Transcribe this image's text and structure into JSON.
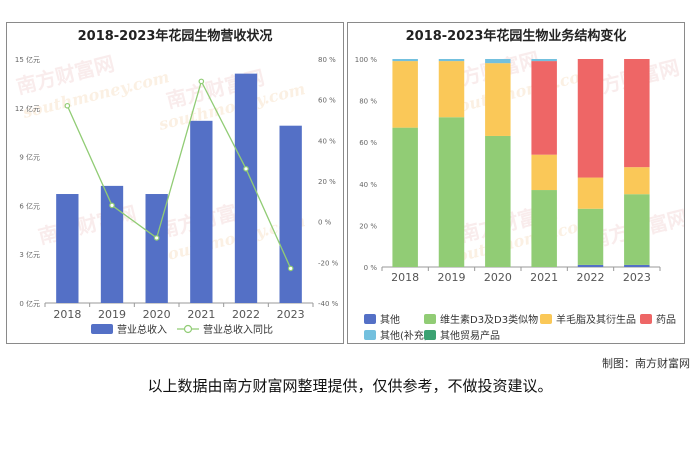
{
  "chart_data": [
    {
      "type": "bar",
      "title": "2018-2023年花园生物营收状况",
      "categories": [
        "2018",
        "2019",
        "2020",
        "2021",
        "2022",
        "2023"
      ],
      "series": [
        {
          "name": "营业总收入",
          "kind": "bar",
          "axis": "left",
          "color": "#5470c6",
          "values": [
            6.7,
            7.2,
            6.7,
            11.2,
            14.1,
            10.9
          ]
        },
        {
          "name": "营业总收入同比",
          "kind": "line",
          "axis": "right",
          "color": "#91cc75",
          "values": [
            57,
            8,
            -8,
            69,
            26,
            -23
          ]
        }
      ],
      "y_left": {
        "ticks": [
          "0 亿元",
          "3 亿元",
          "6 亿元",
          "9 亿元",
          "12 亿元",
          "15 亿元"
        ],
        "ylim": [
          0,
          15
        ]
      },
      "y_right": {
        "ticks": [
          "-40 %",
          "-20 %",
          "0 %",
          "20 %",
          "40 %",
          "60 %",
          "80 %"
        ],
        "ylim": [
          -40,
          80
        ]
      },
      "legend_position": "bottom",
      "grid": false
    },
    {
      "type": "bar",
      "stacked": "percent",
      "title": "2018-2023年花园生物业务结构变化",
      "categories": [
        "2018",
        "2019",
        "2020",
        "2021",
        "2022",
        "2023"
      ],
      "series": [
        {
          "name": "其他",
          "color": "#5470c6",
          "values": [
            0,
            0,
            0,
            0,
            1,
            1
          ]
        },
        {
          "name": "维生素D3及D3类似物",
          "color": "#91cc75",
          "values": [
            67,
            72,
            63,
            37,
            27,
            34
          ]
        },
        {
          "name": "羊毛脂及其衍生品",
          "color": "#fac858",
          "values": [
            32,
            27,
            35,
            17,
            15,
            13
          ]
        },
        {
          "name": "药品",
          "color": "#ee6666",
          "values": [
            0,
            0,
            0,
            45,
            57,
            52
          ]
        },
        {
          "name": "其他(补充)",
          "color": "#73c0de",
          "values": [
            1,
            1,
            2,
            1,
            0,
            0
          ]
        },
        {
          "name": "其他贸易产品",
          "color": "#3ba272",
          "values": [
            0,
            0,
            0,
            0,
            0,
            0
          ]
        }
      ],
      "y_ticks": [
        "0 %",
        "20 %",
        "40 %",
        "60 %",
        "80 %",
        "100 %"
      ],
      "ylim": [
        0,
        100
      ],
      "legend_position": "bottom",
      "grid": false
    }
  ],
  "watermark": {
    "cn": "南方财富网",
    "en": "southmoney.com"
  },
  "credit": "制图：南方财富网",
  "disclaimer": "以上数据由南方财富网整理提供，仅供参考，不做投资建议。"
}
